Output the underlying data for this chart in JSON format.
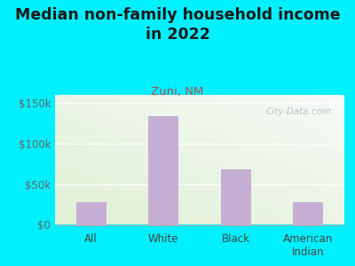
{
  "categories": [
    "All",
    "White",
    "Black",
    "American\nIndian"
  ],
  "values": [
    28000,
    133000,
    68000,
    28000
  ],
  "bar_color": "#c4aed4",
  "title": "Median non-family household income\nin 2022",
  "subtitle": "Zuni, NM",
  "subtitle_color": "#b05050",
  "title_color": "#1a1a1a",
  "bg_color": "#00f0ff",
  "yticks": [
    0,
    50000,
    100000,
    150000
  ],
  "ytick_labels": [
    "$0",
    "$50k",
    "$100k",
    "$150k"
  ],
  "ylim": [
    0,
    160000
  ],
  "watermark": "City-Data.com",
  "title_fontsize": 12.5,
  "subtitle_fontsize": 9.5,
  "grad_green": [
    0.88,
    0.94,
    0.83,
    1.0
  ],
  "grad_white": [
    0.97,
    0.98,
    0.97,
    1.0
  ]
}
